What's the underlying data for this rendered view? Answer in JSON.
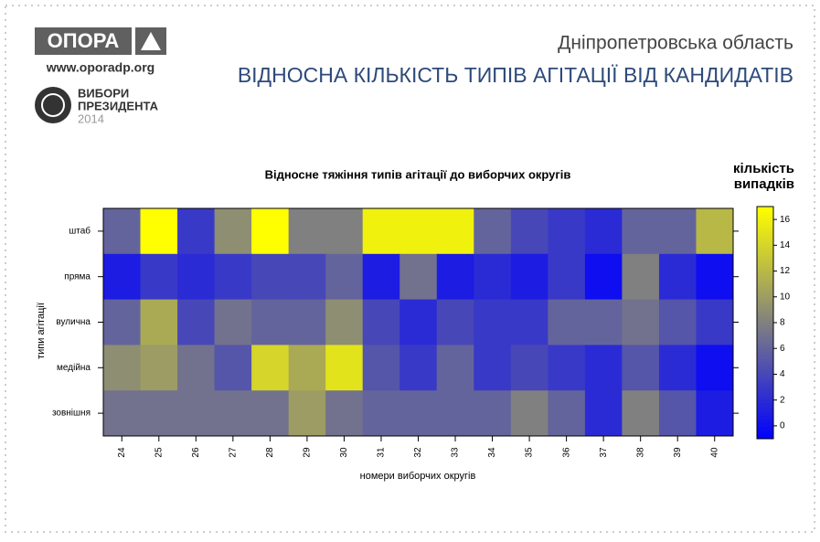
{
  "header": {
    "logo": "ОПОРА",
    "site": "www.oporadp.org",
    "elections_1": "ВИБОРИ",
    "elections_2": "ПРЕЗИДЕНТА",
    "elections_year": "2014",
    "region": "Дніпропетровська область",
    "headline": "ВІДНОСНА КІЛЬКІСТЬ ТИПІВ АГІТАЦІЇ ВІД КАНДИДАТІВ"
  },
  "chart_data": {
    "type": "heatmap",
    "title": "Відносне тяжіння типів агітації до виборчих округів",
    "x_label": "номери виборчих округів",
    "y_label": "типи агітації",
    "legend_title": [
      "кількість",
      "випадків"
    ],
    "categories": [
      "24",
      "25",
      "26",
      "27",
      "28",
      "29",
      "30",
      "31",
      "32",
      "33",
      "34",
      "35",
      "36",
      "37",
      "38",
      "39",
      "40"
    ],
    "rows": [
      "штаб",
      "пряма",
      "вулична",
      "медійна",
      "зовнішня"
    ],
    "values": [
      [
        6,
        17,
        3,
        9,
        17,
        8,
        8,
        16,
        16,
        16,
        6,
        4,
        3,
        2,
        6,
        6,
        12
      ],
      [
        1,
        3,
        2,
        3,
        4,
        4,
        6,
        1,
        7,
        1,
        2,
        1,
        3,
        0,
        8,
        2,
        0
      ],
      [
        6,
        11,
        4,
        7,
        6,
        6,
        9,
        4,
        2,
        4,
        3,
        3,
        6,
        6,
        7,
        5,
        3
      ],
      [
        9,
        10,
        7,
        5,
        14,
        11,
        15,
        5,
        3,
        6,
        3,
        4,
        3,
        2,
        5,
        2,
        0
      ],
      [
        7,
        7,
        7,
        7,
        7,
        10,
        7,
        6,
        6,
        6,
        6,
        8,
        6,
        2,
        8,
        5,
        1
      ]
    ],
    "colors": [
      "#0000ff",
      "#808080",
      "#ffff00"
    ],
    "zlim": [
      -1,
      17
    ],
    "zticks": [
      0,
      2,
      4,
      6,
      8,
      10,
      12,
      14,
      16
    ]
  }
}
